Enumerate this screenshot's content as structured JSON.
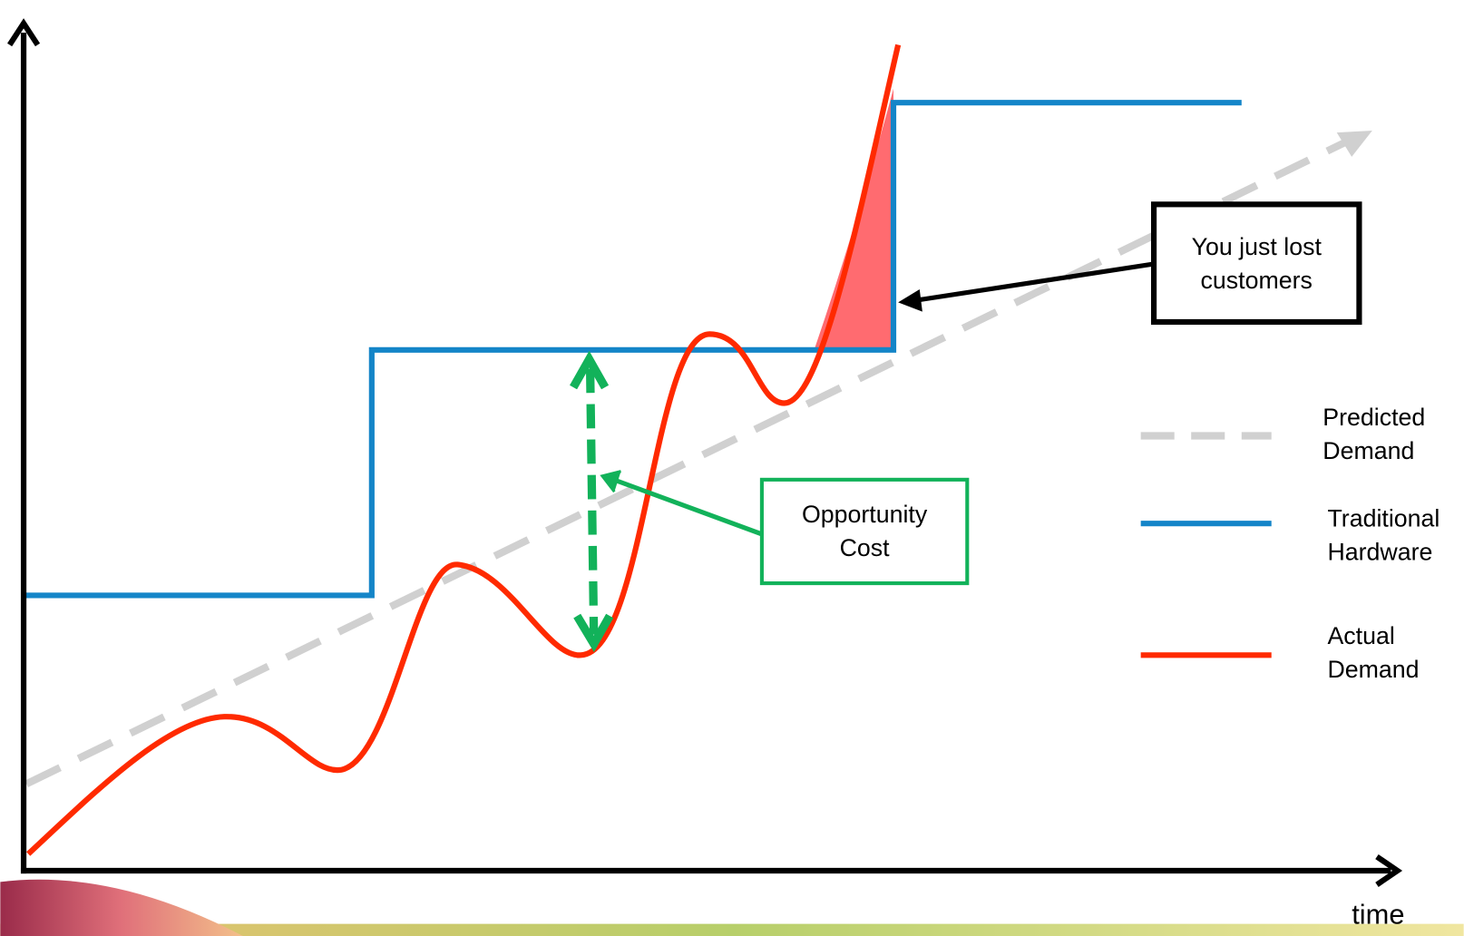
{
  "annotations": {
    "lost_customers": [
      "You just lost",
      "customers"
    ],
    "opportunity_cost": [
      "Opportunity",
      "Cost"
    ]
  },
  "legend": [
    {
      "label": [
        "Predicted",
        "Demand"
      ]
    },
    {
      "label": [
        "Traditional",
        "Hardware"
      ]
    },
    {
      "label": [
        "Actual",
        "Demand"
      ]
    }
  ],
  "x_axis_label": "time"
}
